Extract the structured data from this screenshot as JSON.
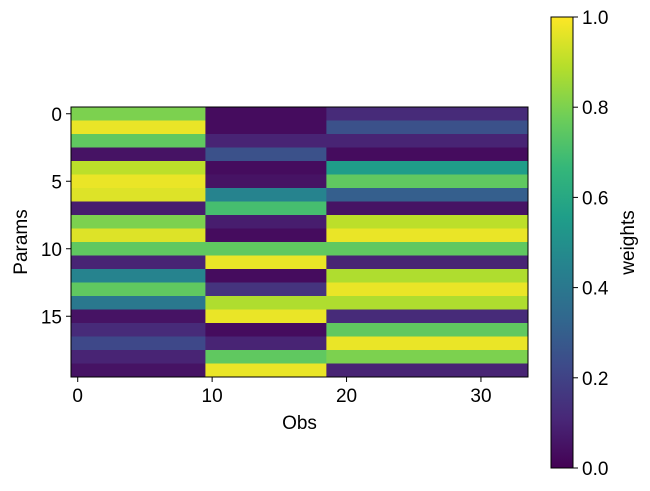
{
  "chart_data": {
    "type": "heatmap",
    "title": "",
    "xlabel": "Obs",
    "ylabel": "Params",
    "colorbar_label": "weights",
    "colormap": "viridis",
    "colormap_stops": [
      "#440154",
      "#482878",
      "#3e4989",
      "#31688e",
      "#26828e",
      "#1f9e89",
      "#35b779",
      "#6ece58",
      "#b5de2b",
      "#fde725"
    ],
    "n_rows": 20,
    "n_cols": 34,
    "x_ticks": [
      0,
      10,
      20,
      30
    ],
    "y_ticks": [
      0,
      5,
      10,
      15
    ],
    "colorbar_ticks": [
      "0.0",
      "0.2",
      "0.4",
      "0.6",
      "0.8",
      "1.0"
    ],
    "vmin": 0.0,
    "vmax": 1.0,
    "column_blocks": [
      {
        "col_start": 0,
        "col_end": 9
      },
      {
        "col_start": 10,
        "col_end": 18
      },
      {
        "col_start": 19,
        "col_end": 33
      }
    ],
    "row_values": [
      [
        0.8,
        0.03,
        0.12
      ],
      [
        0.97,
        0.03,
        0.25
      ],
      [
        0.75,
        0.1,
        0.1
      ],
      [
        0.05,
        0.25,
        0.03
      ],
      [
        0.9,
        0.03,
        0.55
      ],
      [
        0.97,
        0.05,
        0.75
      ],
      [
        0.95,
        0.45,
        0.3
      ],
      [
        0.08,
        0.7,
        0.05
      ],
      [
        0.8,
        0.08,
        0.9
      ],
      [
        0.95,
        0.03,
        0.97
      ],
      [
        0.75,
        0.75,
        0.75
      ],
      [
        0.1,
        0.97,
        0.1
      ],
      [
        0.45,
        0.03,
        0.88
      ],
      [
        0.75,
        0.15,
        0.97
      ],
      [
        0.4,
        0.88,
        0.88
      ],
      [
        0.05,
        0.97,
        0.12
      ],
      [
        0.12,
        0.03,
        0.75
      ],
      [
        0.22,
        0.1,
        0.97
      ],
      [
        0.1,
        0.75,
        0.8
      ],
      [
        0.05,
        0.97,
        0.1
      ]
    ]
  }
}
